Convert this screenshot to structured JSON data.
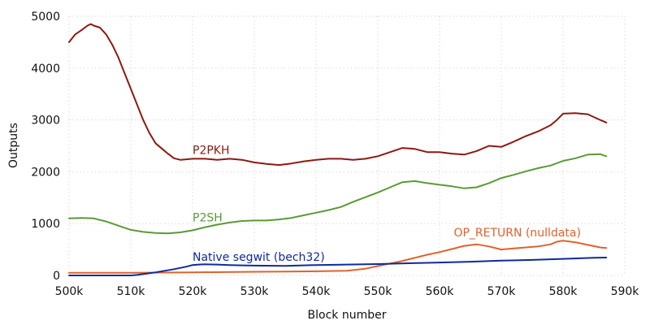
{
  "chart_data": {
    "type": "line",
    "title": "",
    "xlabel": "Block number",
    "ylabel": "Outputs",
    "xlim": [
      500000,
      590000
    ],
    "ylim": [
      0,
      5000
    ],
    "x_ticks": [
      {
        "value": 500000,
        "label": "500k"
      },
      {
        "value": 510000,
        "label": "510k"
      },
      {
        "value": 520000,
        "label": "520k"
      },
      {
        "value": 530000,
        "label": "530k"
      },
      {
        "value": 540000,
        "label": "540k"
      },
      {
        "value": 550000,
        "label": "550k"
      },
      {
        "value": 560000,
        "label": "560k"
      },
      {
        "value": 570000,
        "label": "570k"
      },
      {
        "value": 580000,
        "label": "580k"
      },
      {
        "value": 590000,
        "label": "590k"
      }
    ],
    "y_ticks": [
      {
        "value": 0,
        "label": "0"
      },
      {
        "value": 1000,
        "label": "1000"
      },
      {
        "value": 2000,
        "label": "2000"
      },
      {
        "value": 3000,
        "label": "3000"
      },
      {
        "value": 4000,
        "label": "4000"
      },
      {
        "value": 5000,
        "label": "5000"
      }
    ],
    "grid": true,
    "series": [
      {
        "name": "P2PKH",
        "color": "#8b1a10",
        "x": [
          500000,
          501000,
          502000,
          503000,
          503500,
          504000,
          505000,
          506000,
          507000,
          508000,
          509000,
          510000,
          511000,
          512000,
          513000,
          514000,
          515000,
          516000,
          517000,
          518000,
          519000,
          520000,
          522000,
          524000,
          526000,
          528000,
          530000,
          532000,
          534000,
          536000,
          538000,
          540000,
          542000,
          544000,
          546000,
          548000,
          550000,
          552000,
          554000,
          556000,
          558000,
          560000,
          562000,
          564000,
          566000,
          568000,
          570000,
          572000,
          574000,
          576000,
          578000,
          579000,
          580000,
          582000,
          584000,
          586000,
          587000
        ],
        "y": [
          4500,
          4650,
          4730,
          4820,
          4850,
          4820,
          4780,
          4650,
          4450,
          4200,
          3900,
          3600,
          3300,
          3000,
          2750,
          2550,
          2450,
          2350,
          2260,
          2230,
          2240,
          2250,
          2250,
          2230,
          2250,
          2230,
          2180,
          2150,
          2130,
          2160,
          2200,
          2230,
          2250,
          2250,
          2230,
          2250,
          2300,
          2380,
          2460,
          2440,
          2380,
          2380,
          2350,
          2330,
          2400,
          2500,
          2480,
          2580,
          2690,
          2780,
          2900,
          3000,
          3120,
          3130,
          3110,
          3000,
          2950
        ]
      },
      {
        "name": "P2SH",
        "color": "#5a9a38",
        "x": [
          500000,
          502000,
          504000,
          506000,
          508000,
          510000,
          512000,
          514000,
          516000,
          518000,
          520000,
          522000,
          524000,
          526000,
          528000,
          530000,
          532000,
          534000,
          536000,
          538000,
          540000,
          542000,
          544000,
          546000,
          548000,
          550000,
          552000,
          554000,
          556000,
          558000,
          560000,
          562000,
          564000,
          566000,
          568000,
          570000,
          572000,
          574000,
          576000,
          578000,
          580000,
          582000,
          584000,
          586000,
          587000
        ],
        "y": [
          1100,
          1110,
          1100,
          1040,
          960,
          880,
          840,
          820,
          810,
          830,
          870,
          930,
          980,
          1020,
          1050,
          1060,
          1060,
          1080,
          1110,
          1160,
          1210,
          1260,
          1320,
          1420,
          1510,
          1600,
          1700,
          1800,
          1820,
          1780,
          1750,
          1720,
          1680,
          1700,
          1780,
          1880,
          1940,
          2010,
          2070,
          2120,
          2210,
          2260,
          2330,
          2340,
          2300
        ]
      },
      {
        "name": "OP_RETURN (nulldata)",
        "color": "#e0622a",
        "x": [
          500000,
          505000,
          510000,
          515000,
          520000,
          525000,
          530000,
          535000,
          540000,
          545000,
          548000,
          550000,
          552000,
          554000,
          556000,
          558000,
          560000,
          562000,
          564000,
          566000,
          568000,
          570000,
          572000,
          574000,
          576000,
          578000,
          579000,
          580000,
          582000,
          584000,
          586000,
          587000
        ],
        "y": [
          50,
          50,
          50,
          55,
          60,
          65,
          70,
          75,
          80,
          90,
          130,
          180,
          230,
          280,
          340,
          400,
          450,
          510,
          570,
          600,
          560,
          500,
          520,
          540,
          560,
          600,
          650,
          670,
          640,
          590,
          540,
          530
        ]
      },
      {
        "name": "Native segwit (bech32)",
        "color": "#0f2a9c",
        "x": [
          500000,
          505000,
          510000,
          511000,
          514000,
          517000,
          519000,
          520000,
          521000,
          522000,
          524000,
          526000,
          528000,
          530000,
          535000,
          540000,
          545000,
          550000,
          555000,
          560000,
          565000,
          570000,
          575000,
          580000,
          585000,
          587000
        ],
        "y": [
          0,
          0,
          0,
          10,
          60,
          120,
          170,
          200,
          210,
          215,
          210,
          200,
          195,
          190,
          185,
          200,
          210,
          220,
          235,
          250,
          265,
          285,
          300,
          320,
          340,
          345
        ]
      }
    ],
    "annotations": [
      {
        "text": "P2PKH",
        "x": 520000,
        "y": 2340,
        "color": "#8b1a10",
        "anchor": "start"
      },
      {
        "text": "P2SH",
        "x": 520000,
        "y": 1040,
        "color": "#5a9a38",
        "anchor": "start"
      },
      {
        "text": "Native segwit (bech32)",
        "x": 520000,
        "y": 280,
        "color": "#0f2a9c",
        "anchor": "start"
      },
      {
        "text": "OP_RETURN (nulldata)",
        "x": 562300,
        "y": 750,
        "color": "#e0622a",
        "anchor": "start"
      }
    ]
  }
}
